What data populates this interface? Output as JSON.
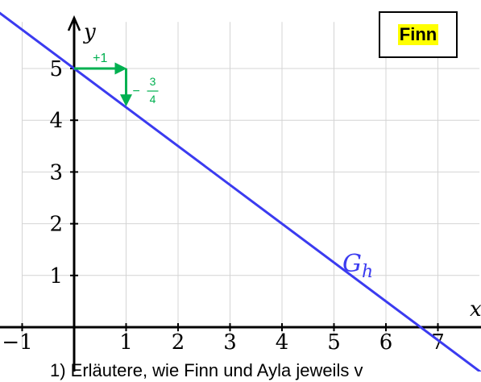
{
  "chart_data": {
    "type": "line",
    "xlabel": "x",
    "ylabel": "y",
    "xlim": [
      -1,
      7.8
    ],
    "ylim": [
      -0.4,
      5.9
    ],
    "x_ticks": [
      -1,
      1,
      2,
      3,
      4,
      5,
      6,
      7
    ],
    "y_ticks": [
      1,
      2,
      3,
      4,
      5
    ],
    "grid": true,
    "series": [
      {
        "name": "G_h",
        "label_base": "G",
        "label_sub": "h",
        "color": "#3b3bf0",
        "slope": -0.75,
        "intercept": 5
      }
    ],
    "annotations": {
      "color": "#00b050",
      "run_label": "+1",
      "rise_sign": "−",
      "rise_num": "3",
      "rise_den": "4",
      "from": [
        0,
        5
      ],
      "to": [
        1,
        4.25
      ]
    }
  },
  "name_box": {
    "label": "Finn",
    "highlight_color": "#ffff00"
  },
  "caption": {
    "text": "1)  Erläutere, wie Finn und Ayla jeweils v"
  }
}
